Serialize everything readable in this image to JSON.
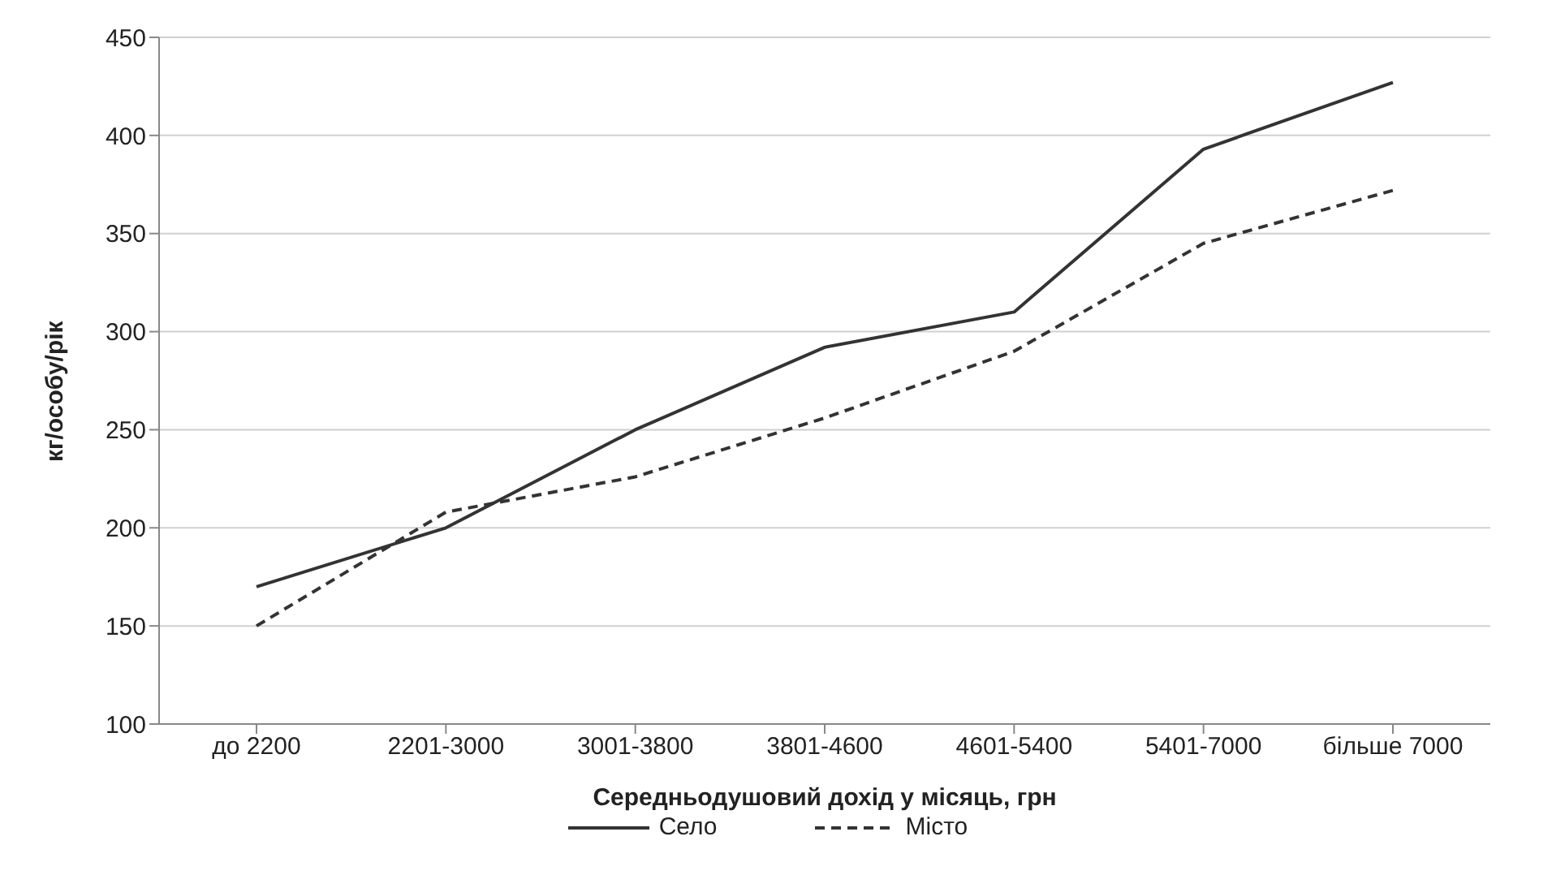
{
  "chart_data": {
    "type": "line",
    "xlabel": "Середньодушовий дохід у місяць, грн",
    "ylabel": "кг/особу/рік",
    "categories": [
      "до 2200",
      "2201-3000",
      "3001-3800",
      "3801-4600",
      "4601-5400",
      "5401-7000",
      "більше 7000"
    ],
    "series": [
      {
        "name": "Село",
        "color": "#333333",
        "line_style": "solid",
        "values": [
          170,
          200,
          250,
          292,
          310,
          393,
          427
        ]
      },
      {
        "name": "Місто",
        "color": "#333333",
        "line_style": "dashed",
        "values": [
          150,
          208,
          226,
          256,
          290,
          345,
          372
        ]
      }
    ],
    "ylim": [
      100,
      450
    ],
    "yticks": [
      100,
      150,
      200,
      250,
      300,
      350,
      400,
      450
    ],
    "grid": "y",
    "legend": "bottom",
    "marker": "none"
  }
}
